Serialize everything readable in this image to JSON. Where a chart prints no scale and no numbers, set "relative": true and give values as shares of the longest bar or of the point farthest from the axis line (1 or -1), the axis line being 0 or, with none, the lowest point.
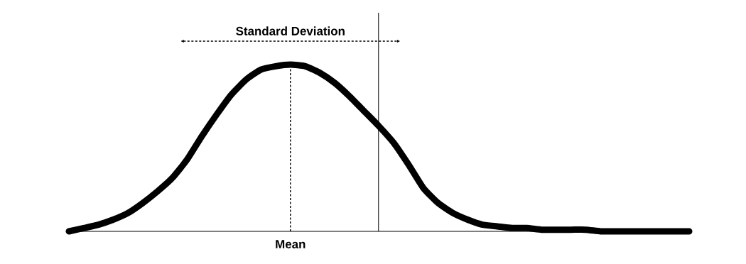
{
  "chart_data": {
    "type": "line",
    "relative": true,
    "categories": [
      null,
      null,
      null,
      null,
      null,
      null,
      null,
      null,
      null,
      null,
      null,
      null,
      null,
      null,
      null,
      null,
      null,
      null,
      null,
      null,
      null,
      null,
      null,
      null,
      null,
      null,
      null,
      null,
      null,
      null,
      null,
      null,
      null,
      null,
      null,
      null,
      null,
      null,
      null,
      null,
      null,
      null,
      null
    ],
    "series": [
      {
        "color": "#000000",
        "values": [
          0.0,
          0.02,
          0.04,
          0.07,
          0.11,
          0.17,
          0.24,
          0.32,
          0.43,
          0.57,
          0.7,
          0.82,
          0.91,
          0.97,
          0.99,
          1.0,
          0.99,
          0.95,
          0.89,
          0.81,
          0.72,
          0.63,
          0.53,
          0.4,
          0.26,
          0.17,
          0.11,
          0.07,
          0.04,
          0.03,
          0.02,
          0.02,
          0.01,
          0.01,
          0.01,
          0.01,
          0.0,
          0.0,
          0.0,
          0.0,
          0.0,
          0.0,
          0.0
        ]
      }
    ],
    "annotations": [
      "Standard Deviation",
      "Mean"
    ]
  }
}
